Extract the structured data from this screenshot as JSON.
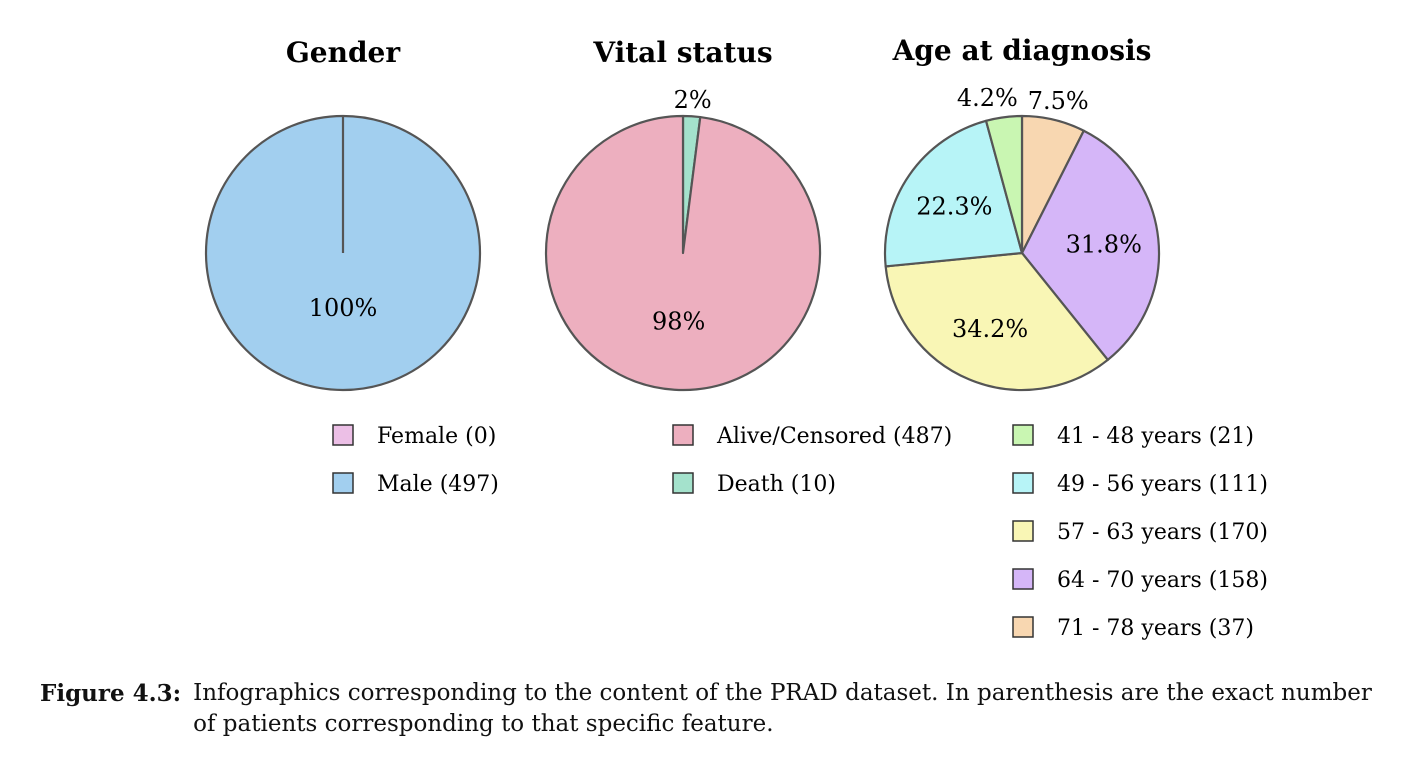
{
  "chart_data": [
    {
      "type": "pie",
      "title": "Gender",
      "slices": [
        {
          "label": "Female",
          "count": 0,
          "pct_label": "",
          "color": "#ecbfe6"
        },
        {
          "label": "Male",
          "count": 497,
          "pct_label": "100%",
          "color": "#a2cfef"
        }
      ],
      "legend": [
        "Female (0)",
        "Male (497)"
      ]
    },
    {
      "type": "pie",
      "title": "Vital status",
      "slices": [
        {
          "label": "Death",
          "count": 10,
          "pct_label": "2%",
          "color": "#a4e2cc"
        },
        {
          "label": "Alive/Censored",
          "count": 487,
          "pct_label": "98%",
          "color": "#edafbf"
        }
      ],
      "legend": [
        "Alive/Censored (487)",
        "Death (10)"
      ]
    },
    {
      "type": "pie",
      "title": "Age at diagnosis",
      "slices": [
        {
          "label": "71 - 78 years",
          "count": 37,
          "pct_label": "7.5%",
          "color": "#f8d7b1"
        },
        {
          "label": "64 - 70 years",
          "count": 158,
          "pct_label": "31.8%",
          "color": "#d5b6f8"
        },
        {
          "label": "57 - 63 years",
          "count": 170,
          "pct_label": "34.2%",
          "color": "#f9f6b5"
        },
        {
          "label": "49 - 56 years",
          "count": 111,
          "pct_label": "22.3%",
          "color": "#b7f4f7"
        },
        {
          "label": "41 - 48 years",
          "count": 21,
          "pct_label": "4.2%",
          "color": "#c9f6b2"
        }
      ],
      "legend": [
        "41 - 48 years (21)",
        "49 - 56 years (111)",
        "57 - 63 years (170)",
        "64 - 70 years (158)",
        "71 - 78 years (37)"
      ],
      "legend_colors": [
        "#c9f6b2",
        "#b7f4f7",
        "#f9f6b5",
        "#d5b6f8",
        "#f8d7b1"
      ]
    }
  ],
  "caption": {
    "label": "Figure 4.3:",
    "text": "Infographics corresponding to the content of the PRAD dataset. In parenthesis are the exact number of patients corresponding to that specific feature."
  }
}
